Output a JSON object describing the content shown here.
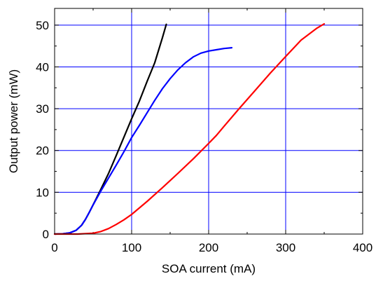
{
  "chart_data": {
    "type": "line",
    "title": "",
    "xlabel": "SOA current (mA)",
    "ylabel": "Output power (mW)",
    "xlim": [
      0,
      400
    ],
    "ylim": [
      0,
      54
    ],
    "xticks": [
      0,
      100,
      200,
      300,
      400
    ],
    "yticks": [
      0,
      10,
      20,
      30,
      40,
      50
    ],
    "grid": true,
    "grid_color": "#0000ff",
    "series": [
      {
        "color": "#000000",
        "x": [
          0,
          10,
          20,
          28,
          35,
          40,
          45,
          50,
          60,
          70,
          80,
          90,
          100,
          110,
          120,
          130,
          140,
          145
        ],
        "y": [
          0,
          0.05,
          0.3,
          0.9,
          2.1,
          3.5,
          5.2,
          7.0,
          10.7,
          14.5,
          18.8,
          23.2,
          27.6,
          31.8,
          36.5,
          41.0,
          47.0,
          50.2
        ]
      },
      {
        "color": "#0000ff",
        "x": [
          0,
          10,
          20,
          28,
          35,
          40,
          45,
          50,
          60,
          70,
          80,
          90,
          100,
          110,
          120,
          130,
          140,
          150,
          160,
          170,
          180,
          190,
          200,
          210,
          220,
          230
        ],
        "y": [
          0,
          0.05,
          0.3,
          0.9,
          2.1,
          3.5,
          5.2,
          7.0,
          10.3,
          13.4,
          16.5,
          19.7,
          23.1,
          26.0,
          29.0,
          32.0,
          34.8,
          37.2,
          39.3,
          41.0,
          42.4,
          43.3,
          43.8,
          44.1,
          44.4,
          44.6
        ]
      },
      {
        "color": "#ff0000",
        "x": [
          0,
          30,
          50,
          60,
          70,
          80,
          90,
          100,
          120,
          140,
          160,
          180,
          200,
          210,
          220,
          240,
          260,
          280,
          300,
          320,
          340,
          350
        ],
        "y": [
          0,
          0,
          0.2,
          0.6,
          1.3,
          2.3,
          3.4,
          4.7,
          7.8,
          11.1,
          14.5,
          18.0,
          21.7,
          23.6,
          25.8,
          30.1,
          34.3,
          38.5,
          42.5,
          46.4,
          49.2,
          50.3
        ]
      }
    ]
  }
}
